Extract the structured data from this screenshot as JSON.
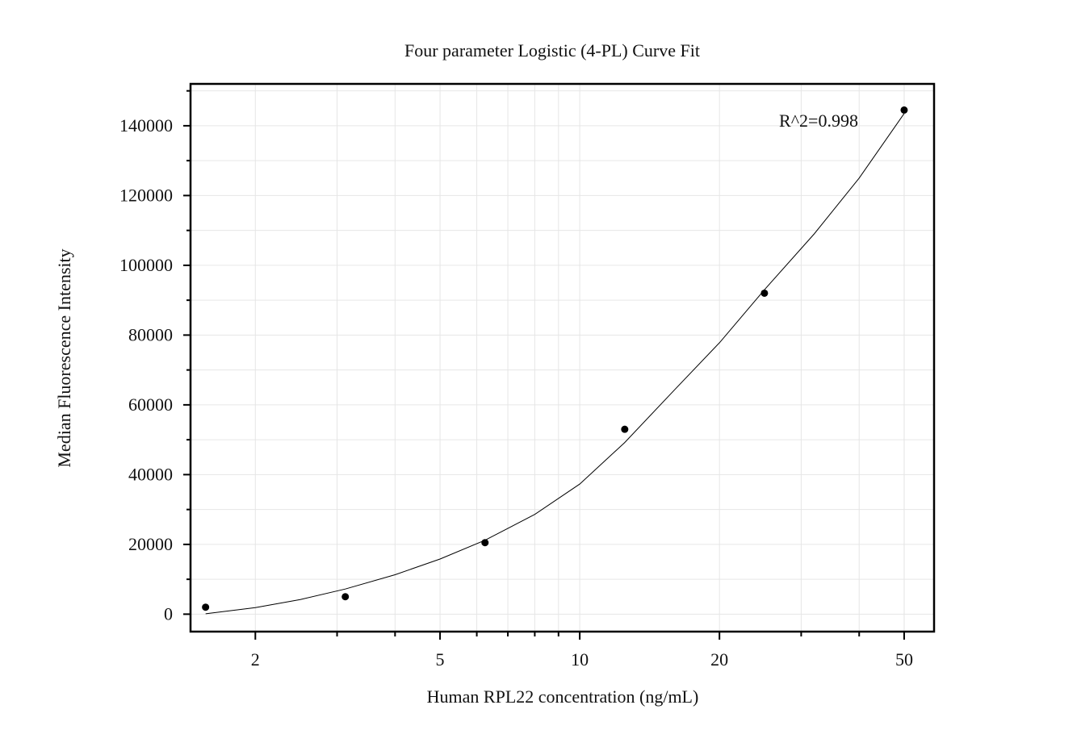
{
  "chart_data": {
    "type": "scatter",
    "title": "Four parameter Logistic (4-PL) Curve Fit",
    "xlabel": "Human RPL22 concentration (ng/mL)",
    "ylabel": "Median Fluorescence Intensity",
    "xscale": "log",
    "xlim": [
      1.45,
      58
    ],
    "ylim": [
      -5000,
      152000
    ],
    "grid": true,
    "x_ticks": [
      {
        "value": 2,
        "label": "2"
      },
      {
        "value": 5,
        "label": "5"
      },
      {
        "value": 10,
        "label": "10"
      },
      {
        "value": 20,
        "label": "20"
      },
      {
        "value": 50,
        "label": "50"
      }
    ],
    "y_ticks": [
      {
        "value": 0,
        "label": "0"
      },
      {
        "value": 20000,
        "label": "20000"
      },
      {
        "value": 40000,
        "label": "40000"
      },
      {
        "value": 60000,
        "label": "60000"
      },
      {
        "value": 80000,
        "label": "80000"
      },
      {
        "value": 100000,
        "label": "100000"
      },
      {
        "value": 120000,
        "label": "120000"
      },
      {
        "value": 140000,
        "label": "140000"
      }
    ],
    "series": [
      {
        "x": [
          1.5625,
          3.125,
          6.25,
          12.5,
          25,
          50
        ],
        "y": [
          2000,
          5000,
          20500,
          53000,
          92000,
          144500
        ]
      }
    ],
    "fit_curve": {
      "model": "4PL",
      "x": [
        1.5625,
        2,
        2.5,
        3.125,
        4,
        5,
        6.25,
        8,
        10,
        12.5,
        16,
        20,
        25,
        32,
        40,
        50
      ],
      "y": [
        100,
        1900,
        4200,
        7200,
        11300,
        15800,
        21200,
        28600,
        37300,
        49200,
        64300,
        77800,
        93000,
        109000,
        125000,
        143500
      ]
    },
    "annotations": [
      {
        "text": "R^2=0.998"
      }
    ],
    "colors": {
      "points": "#000000",
      "curve": "#000000",
      "grid": "#e6e6e6",
      "frame": "#000000"
    }
  }
}
